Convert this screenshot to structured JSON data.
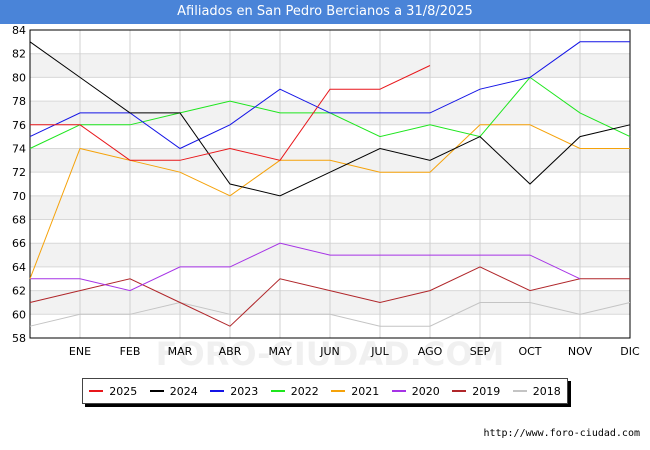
{
  "title": "Afiliados en San Pedro Bercianos a 31/8/2025",
  "source": "http://www.foro-ciudad.com",
  "watermark": "FORO-CIUDAD.COM",
  "chart_data": {
    "type": "line",
    "title": "Afiliados en San Pedro Bercianos a 31/8/2025",
    "categories": [
      "",
      "ENE",
      "FEB",
      "MAR",
      "ABR",
      "MAY",
      "JUN",
      "JUL",
      "AGO",
      "SEP",
      "OCT",
      "NOV",
      "DIC"
    ],
    "y_ticks": [
      58,
      60,
      62,
      64,
      66,
      68,
      70,
      72,
      74,
      76,
      78,
      80,
      82,
      84
    ],
    "ylim": [
      58,
      84
    ],
    "grid": true,
    "legend_position": "bottom",
    "series": [
      {
        "name": "2025",
        "color": "#e8171b",
        "values": [
          76,
          76,
          73,
          73,
          74,
          73,
          79,
          79,
          81,
          null,
          null,
          null,
          null
        ]
      },
      {
        "name": "2024",
        "color": "#000000",
        "values": [
          83,
          80,
          77,
          77,
          71,
          70,
          72,
          74,
          73,
          75,
          71,
          75,
          76
        ]
      },
      {
        "name": "2023",
        "color": "#1414e6",
        "values": [
          75,
          77,
          77,
          74,
          76,
          79,
          77,
          77,
          77,
          79,
          80,
          83,
          83
        ]
      },
      {
        "name": "2022",
        "color": "#1ee61e",
        "values": [
          74,
          76,
          76,
          77,
          78,
          77,
          77,
          75,
          76,
          75,
          80,
          77,
          75
        ]
      },
      {
        "name": "2021",
        "color": "#f5a20a",
        "values": [
          63,
          74,
          73,
          72,
          70,
          73,
          73,
          72,
          72,
          76,
          76,
          74,
          74
        ]
      },
      {
        "name": "2020",
        "color": "#a633e6",
        "values": [
          63,
          63,
          62,
          64,
          64,
          66,
          65,
          65,
          65,
          65,
          65,
          63,
          null
        ]
      },
      {
        "name": "2019",
        "color": "#b0262a",
        "values": [
          61,
          62,
          63,
          61,
          59,
          63,
          62,
          61,
          62,
          64,
          62,
          63,
          63
        ]
      },
      {
        "name": "2018",
        "color": "#c4c4c4",
        "values": [
          59,
          60,
          60,
          61,
          60,
          60,
          60,
          59,
          59,
          61,
          61,
          60,
          61
        ]
      }
    ]
  }
}
